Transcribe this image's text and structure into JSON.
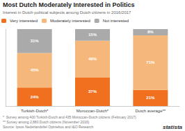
{
  "chart_data": {
    "type": "bar",
    "title": "Most Dutch Moderately Interested in Politics",
    "subtitle": "Interest in Dutch political subjects among Dutch citizens in 2016/2017",
    "categories": [
      "Turkish-Dutch*",
      "Moroccan-Dutch*",
      "Dutch average**"
    ],
    "series": [
      {
        "name": "Very interested",
        "color": "#f07020",
        "values": [
          24,
          37,
          21
        ],
        "value_labels": [
          "24%",
          "37%",
          "21%"
        ]
      },
      {
        "name": "Moderately interested",
        "color": "#f5b87a",
        "values": [
          45,
          48,
          71
        ],
        "value_labels": [
          "45%",
          "48%",
          "71%"
        ]
      },
      {
        "name": "Not interested",
        "color": "#aaaaaa",
        "values": [
          31,
          15,
          8
        ],
        "value_labels": [
          "31%",
          "15%",
          "8%"
        ]
      }
    ],
    "stacked": true,
    "data_labels": true,
    "ylim": [
      0,
      100
    ],
    "tick_labels": "x",
    "grid": false,
    "legend": "upper left",
    "annotations": [
      "*  Survey among 400 Turkish-Dutch and 435 Moroccan-Dutch citizens (February 2017)",
      "** Survey among 2,880 Dutch citizens (November 2016)",
      "Source: Ipsos Nederlandsfiel Opiniebus and I&O Research",
      "statista"
    ]
  }
}
